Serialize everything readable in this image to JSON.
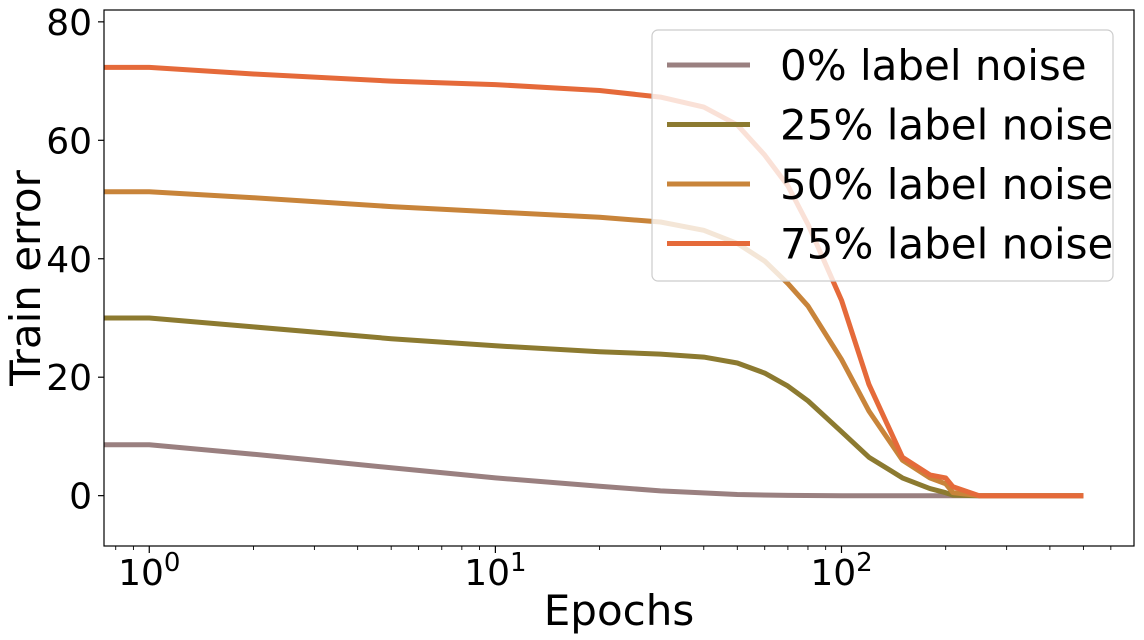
{
  "chart_data": {
    "type": "line",
    "xscale": "log",
    "xlabel": "Epochs",
    "ylabel": "Train error",
    "xlim": [
      0.74,
      700
    ],
    "ylim": [
      -8.5,
      82
    ],
    "xticks": [
      {
        "value": 1,
        "base": "10",
        "exp": "0"
      },
      {
        "value": 10,
        "base": "10",
        "exp": "1"
      },
      {
        "value": 100,
        "base": "10",
        "exp": "2"
      }
    ],
    "yticks": [
      0,
      20,
      40,
      60,
      80
    ],
    "legend_position": "top-right",
    "series": [
      {
        "name": "0% label noise",
        "color": "#9a8080",
        "x": [
          0.5,
          1,
          2,
          3,
          5,
          10,
          20,
          30,
          50,
          70,
          100,
          150,
          200,
          300,
          500
        ],
        "y": [
          8.6,
          8.6,
          7.0,
          6.0,
          4.7,
          3.0,
          1.6,
          0.8,
          0.2,
          0.05,
          0,
          0,
          0,
          0,
          0
        ]
      },
      {
        "name": "25% label noise",
        "color": "#8c7a30",
        "x": [
          0.5,
          1,
          2,
          5,
          10,
          20,
          30,
          40,
          50,
          60,
          70,
          80,
          100,
          120,
          150,
          180,
          200,
          210,
          250,
          300,
          500
        ],
        "y": [
          30,
          30,
          28.5,
          26.5,
          25.3,
          24.3,
          23.9,
          23.4,
          22.4,
          20.7,
          18.5,
          16.0,
          10.8,
          6.5,
          3.0,
          1.2,
          0.5,
          0.1,
          0,
          0,
          0
        ]
      },
      {
        "name": "50% label noise",
        "color": "#c8843a",
        "x": [
          0.5,
          1,
          2,
          5,
          10,
          20,
          30,
          40,
          50,
          60,
          70,
          80,
          100,
          120,
          150,
          180,
          200,
          210,
          250,
          300,
          500
        ],
        "y": [
          51.3,
          51.3,
          50.3,
          48.8,
          47.9,
          47.0,
          46.2,
          44.8,
          42.6,
          39.6,
          35.8,
          32.0,
          23.0,
          14.3,
          6.0,
          3.0,
          2.0,
          0.5,
          0,
          0,
          0
        ]
      },
      {
        "name": "75% label noise",
        "color": "#e56a3a",
        "x": [
          0.5,
          1,
          2,
          5,
          10,
          20,
          30,
          40,
          50,
          60,
          70,
          80,
          100,
          120,
          150,
          180,
          200,
          210,
          250,
          300,
          500
        ],
        "y": [
          72.3,
          72.3,
          71.2,
          70.0,
          69.4,
          68.4,
          67.3,
          65.6,
          62.6,
          57.5,
          52.3,
          45.8,
          33.0,
          18.8,
          6.5,
          3.5,
          3.0,
          1.5,
          0,
          0,
          0
        ]
      }
    ]
  }
}
